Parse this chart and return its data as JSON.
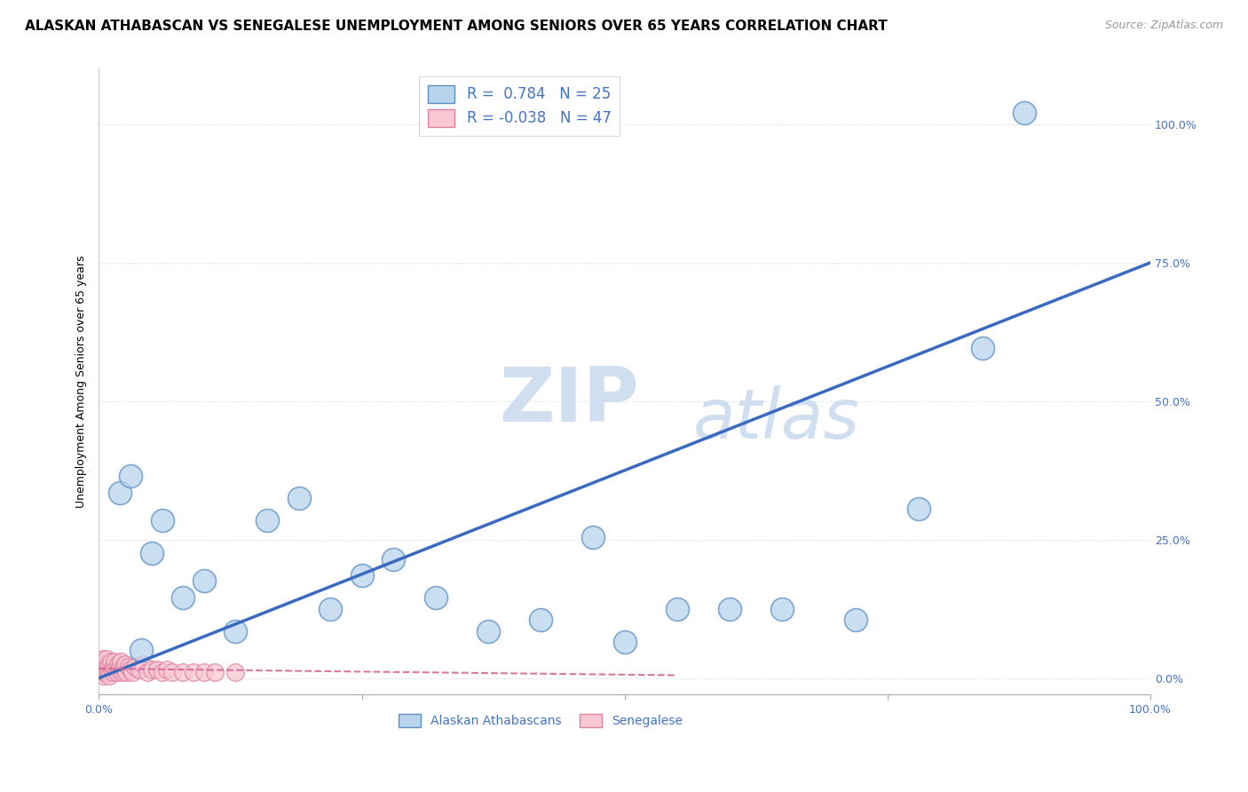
{
  "title": "ALASKAN ATHABASCAN VS SENEGALESE UNEMPLOYMENT AMONG SENIORS OVER 65 YEARS CORRELATION CHART",
  "source": "Source: ZipAtlas.com",
  "ylabel": "Unemployment Among Seniors over 65 years",
  "xlim": [
    0,
    1.0
  ],
  "ylim": [
    -0.03,
    1.1
  ],
  "xticks": [
    0,
    0.25,
    0.5,
    0.75,
    1.0
  ],
  "xtick_labels": [
    "0.0%",
    "",
    "",
    "",
    "100.0%"
  ],
  "yticks": [
    0,
    0.25,
    0.5,
    0.75,
    1.0
  ],
  "ytick_labels": [
    "0.0%",
    "25.0%",
    "50.0%",
    "75.0%",
    "100.0%"
  ],
  "blue_r": " 0.784",
  "blue_n": "25",
  "pink_r": "-0.038",
  "pink_n": "47",
  "blue_color": "#b8d4ed",
  "blue_edge_color": "#5b8ec4",
  "pink_color": "#f8c8d4",
  "pink_edge_color": "#e080a0",
  "blue_line_color": "#3a6abf",
  "pink_line_color": "#d06090",
  "watermark_zip": "ZIP",
  "watermark_atlas": "atlas",
  "watermark_color": "#d0dff0",
  "blue_scatter_x": [
    0.02,
    0.03,
    0.04,
    0.05,
    0.06,
    0.08,
    0.1,
    0.13,
    0.16,
    0.19,
    0.22,
    0.25,
    0.28,
    0.32,
    0.37,
    0.42,
    0.47,
    0.5,
    0.55,
    0.6,
    0.65,
    0.72,
    0.78,
    0.84,
    0.88
  ],
  "blue_scatter_y": [
    0.335,
    0.365,
    0.05,
    0.225,
    0.285,
    0.145,
    0.175,
    0.085,
    0.285,
    0.325,
    0.125,
    0.185,
    0.215,
    0.145,
    0.085,
    0.105,
    0.255,
    0.065,
    0.125,
    0.125,
    0.125,
    0.105,
    0.305,
    0.595,
    1.02
  ],
  "pink_scatter_x": [
    0.002,
    0.003,
    0.004,
    0.004,
    0.005,
    0.005,
    0.006,
    0.006,
    0.007,
    0.007,
    0.008,
    0.009,
    0.01,
    0.01,
    0.011,
    0.012,
    0.013,
    0.014,
    0.015,
    0.016,
    0.017,
    0.018,
    0.019,
    0.02,
    0.021,
    0.022,
    0.023,
    0.024,
    0.025,
    0.026,
    0.028,
    0.03,
    0.032,
    0.034,
    0.038,
    0.042,
    0.046,
    0.05,
    0.055,
    0.06,
    0.065,
    0.07,
    0.08,
    0.09,
    0.1,
    0.11,
    0.13
  ],
  "pink_scatter_y": [
    0.015,
    0.025,
    0.01,
    0.035,
    0.02,
    0.005,
    0.025,
    0.01,
    0.035,
    0.015,
    0.02,
    0.01,
    0.025,
    0.005,
    0.03,
    0.015,
    0.01,
    0.02,
    0.03,
    0.015,
    0.01,
    0.025,
    0.015,
    0.02,
    0.03,
    0.01,
    0.02,
    0.015,
    0.025,
    0.01,
    0.02,
    0.015,
    0.01,
    0.02,
    0.015,
    0.025,
    0.01,
    0.015,
    0.015,
    0.01,
    0.015,
    0.01,
    0.01,
    0.01,
    0.01,
    0.01,
    0.01
  ],
  "blue_line_x": [
    0.0,
    1.0
  ],
  "blue_line_y": [
    0.0,
    0.75
  ],
  "pink_line_x": [
    0.0,
    0.55
  ],
  "pink_line_y": [
    0.017,
    0.005
  ],
  "legend_label_blue": "Alaskan Athabascans",
  "legend_label_pink": "Senegalese",
  "grid_color": "#d8d8d8",
  "title_fontsize": 11,
  "axis_label_fontsize": 9,
  "tick_fontsize": 9,
  "right_tick_color": "#4472c4",
  "legend_text_color": "#4472c4"
}
